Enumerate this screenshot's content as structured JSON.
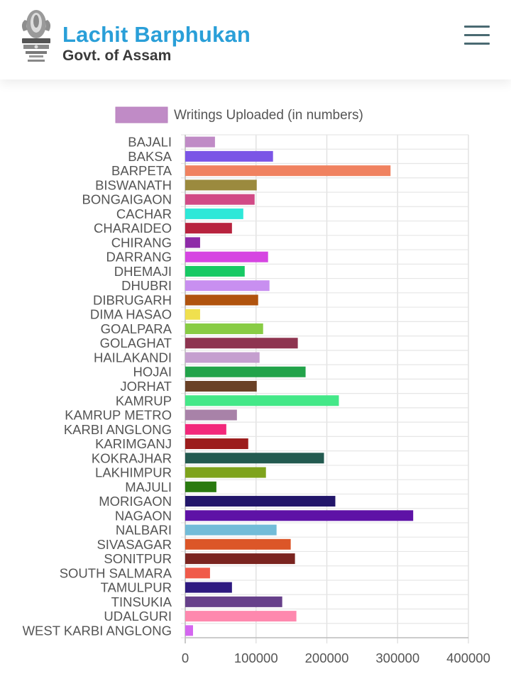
{
  "header": {
    "title": "Lachit Barphukan",
    "subtitle": "Govt. of Assam",
    "logo": "state-emblem",
    "menu_icon": "hamburger-menu-icon"
  },
  "chart_data": {
    "type": "bar",
    "orientation": "horizontal",
    "legend_position": "top",
    "grid": true,
    "series": [
      {
        "name": "Writings Uploaded (in numbers)",
        "legend_color": "#c08bc6"
      }
    ],
    "categories": [
      "BAJALI",
      "BAKSA",
      "BARPETA",
      "BISWANATH",
      "BONGAIGAON",
      "CACHAR",
      "CHARAIDEO",
      "CHIRANG",
      "DARRANG",
      "DHEMAJI",
      "DHUBRI",
      "DIBRUGARH",
      "DIMA HASAO",
      "GOALPARA",
      "GOLAGHAT",
      "HAILAKANDI",
      "HOJAI",
      "JORHAT",
      "KAMRUP",
      "KAMRUP METRO",
      "KARBI ANGLONG",
      "KARIMGANJ",
      "KOKRAJHAR",
      "LAKHIMPUR",
      "MAJULI",
      "MORIGAON",
      "NAGAON",
      "NALBARI",
      "SIVASAGAR",
      "SONITPUR",
      "SOUTH SALMARA",
      "TAMULPUR",
      "TINSUKIA",
      "UDALGURI",
      "WEST KARBI ANGLONG"
    ],
    "values": [
      42000,
      124000,
      290000,
      101000,
      98000,
      82000,
      66000,
      21000,
      117000,
      84000,
      119000,
      103000,
      21000,
      110000,
      159000,
      105000,
      170000,
      101000,
      217000,
      73000,
      58000,
      89000,
      196000,
      114000,
      44000,
      212000,
      322000,
      129000,
      149000,
      155000,
      35000,
      66000,
      137000,
      157000,
      11000
    ],
    "colors": [
      "#c08bc6",
      "#7b55e6",
      "#f08260",
      "#9b8a3e",
      "#d14a86",
      "#2ee8d8",
      "#b8233e",
      "#8e2aa8",
      "#d646e2",
      "#17c964",
      "#c88ff0",
      "#b0530e",
      "#f0e04e",
      "#88cc44",
      "#8e3450",
      "#c59fcf",
      "#22a34a",
      "#6a4126",
      "#44e888",
      "#a882a8",
      "#f2287a",
      "#9c1c1c",
      "#235a50",
      "#7ea31c",
      "#2a7a10",
      "#22166a",
      "#5e12a6",
      "#72bcd8",
      "#dc5628",
      "#7a2420",
      "#f05a4a",
      "#2e1a80",
      "#66408a",
      "#fe88ae",
      "#d466f0"
    ],
    "xlim": [
      0,
      400000
    ],
    "xticks": [
      "0",
      "100000",
      "200000",
      "300000",
      "400000"
    ]
  }
}
